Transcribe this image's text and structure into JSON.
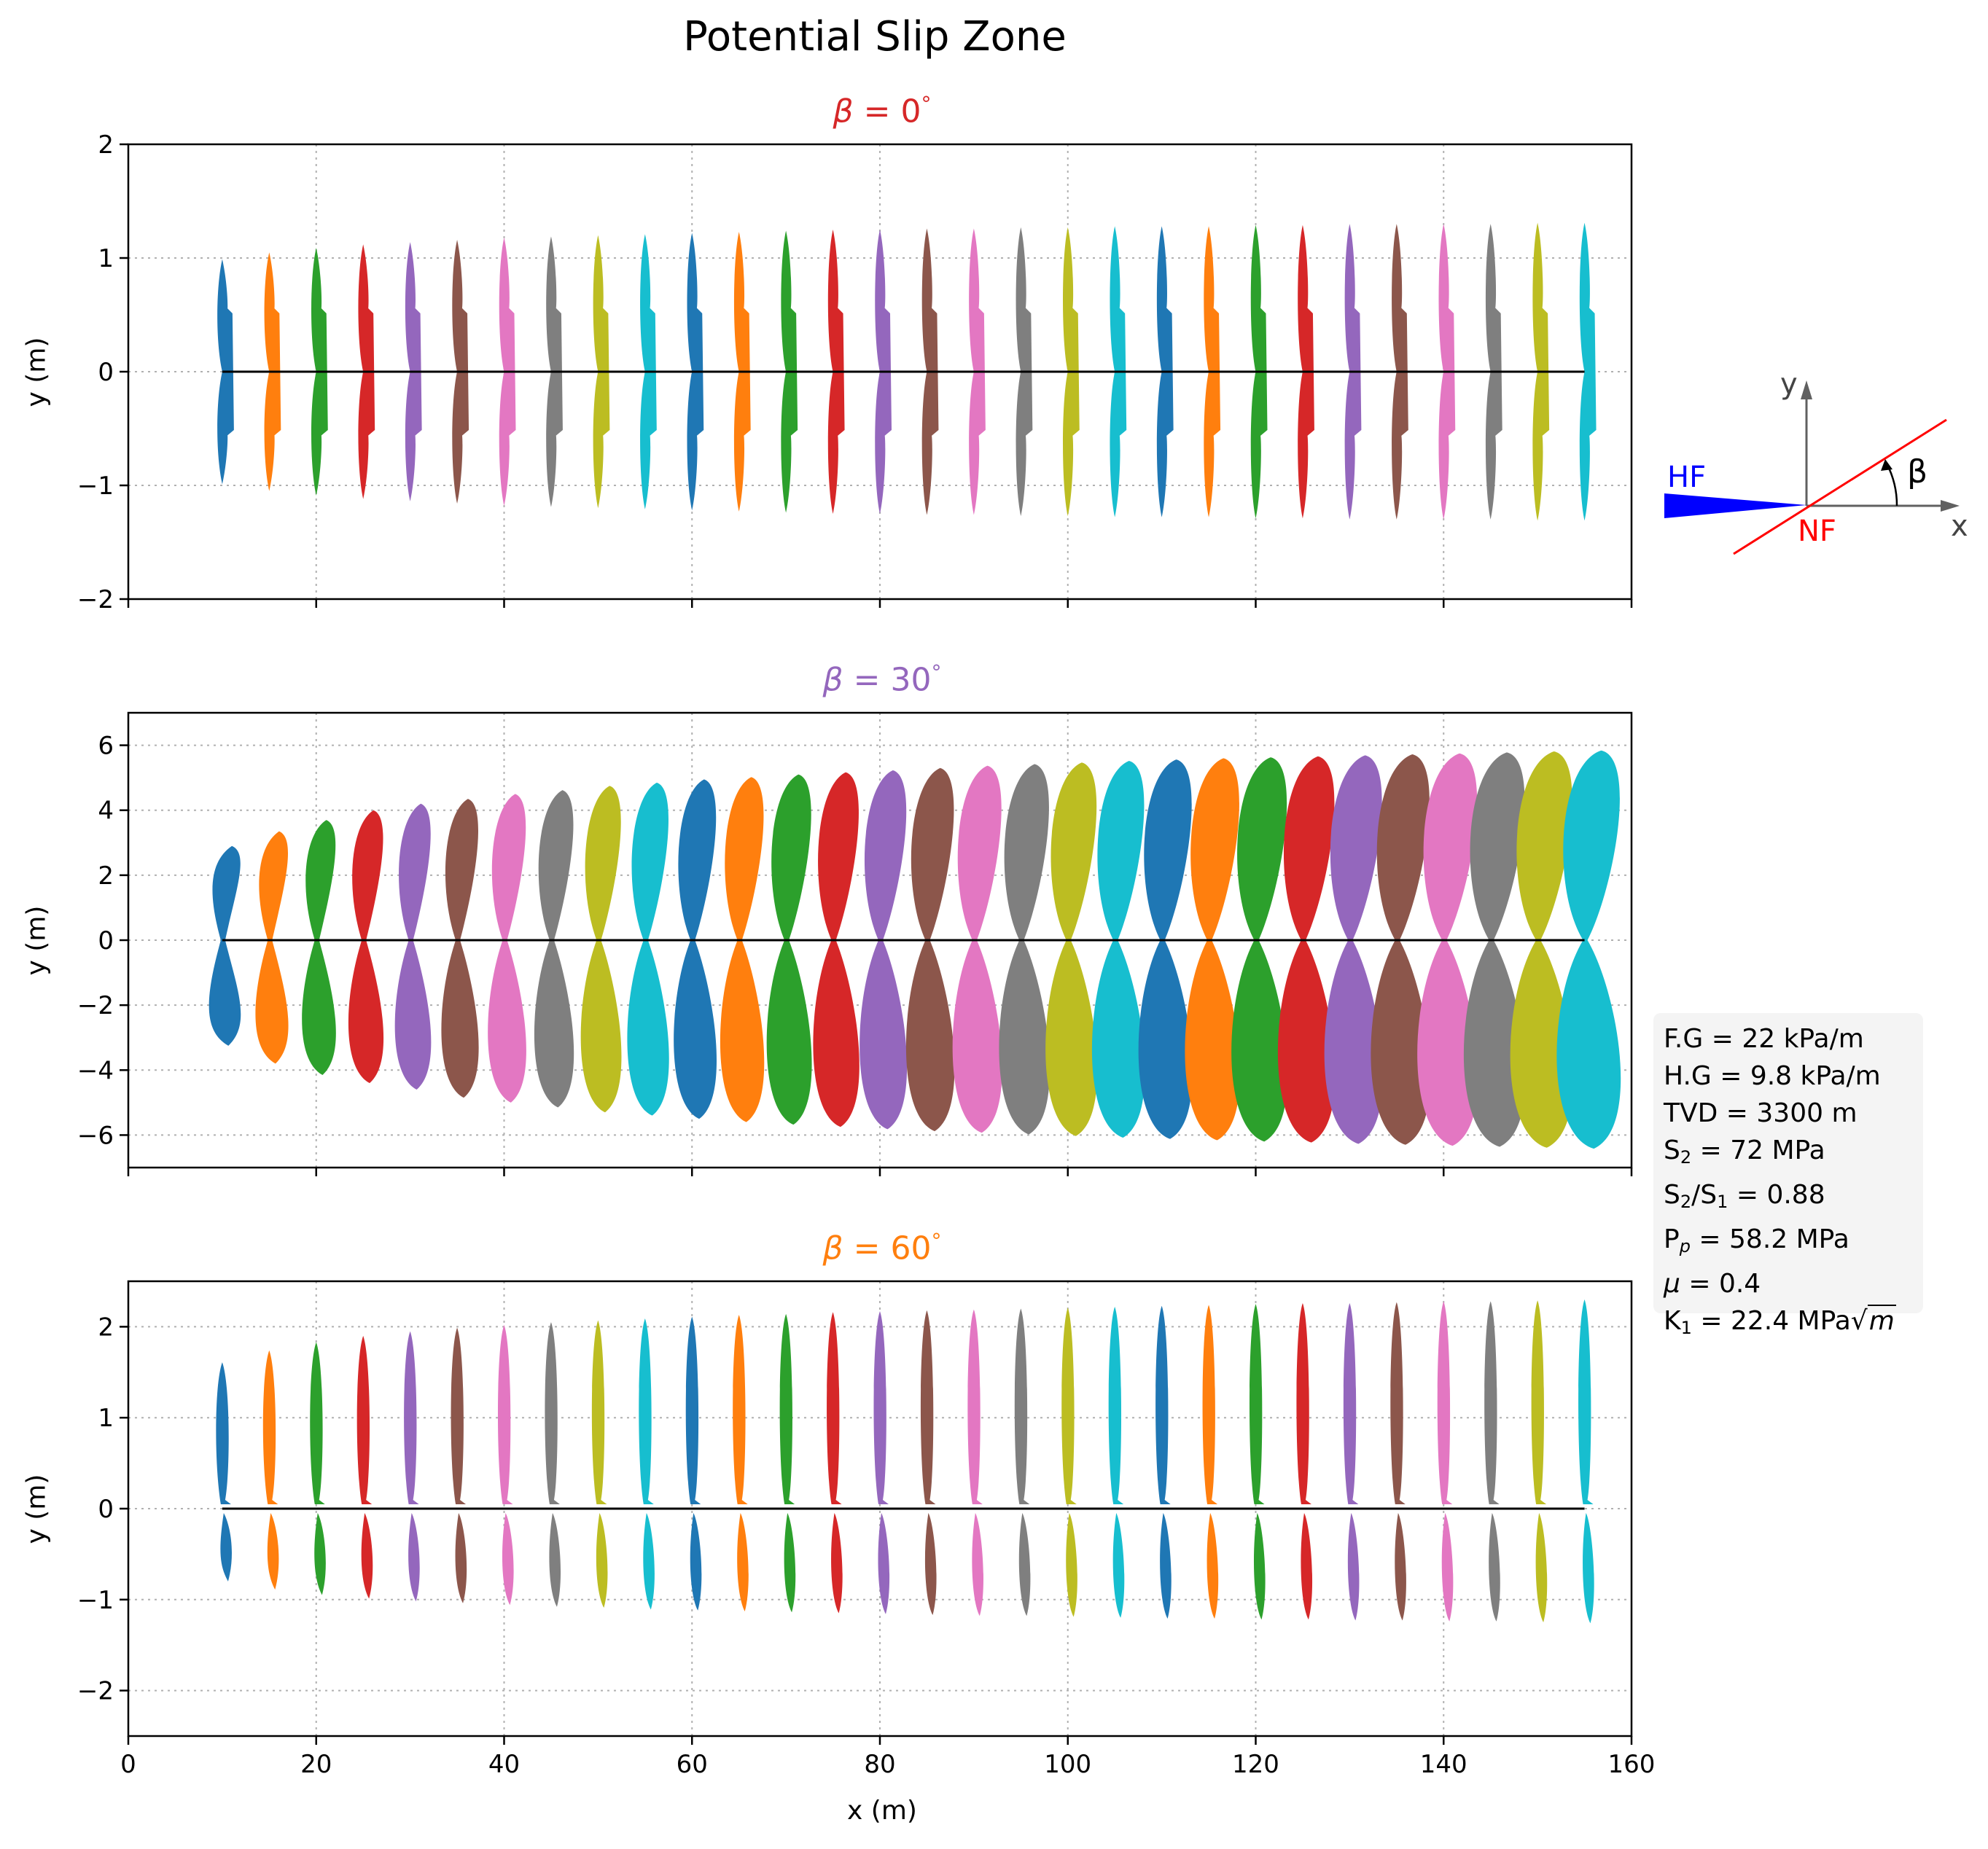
{
  "figure": {
    "title": "Potential Slip Zone",
    "xlabel": "x (m)",
    "ylabel": "y (m)"
  },
  "colors": [
    "#1f77b4",
    "#ff7f0e",
    "#2ca02c",
    "#d62728",
    "#9467bd",
    "#8c564b",
    "#e377c2",
    "#7f7f7f",
    "#bcbd22",
    "#17becf"
  ],
  "chart_data": [
    {
      "type": "area",
      "title_symbol": "β",
      "title_value": "= 0",
      "title_unit": "°",
      "title_color": "#d62728",
      "xlim": [
        0,
        160
      ],
      "ylim": [
        -2,
        2
      ],
      "yticks": [
        -2,
        -1,
        0,
        1,
        2
      ],
      "xticks": [
        0,
        20,
        40,
        60,
        80,
        100,
        120,
        140,
        160
      ],
      "grid": true,
      "reference_line": {
        "x": [
          10,
          155
        ],
        "y": 0
      },
      "zone_positions_x": [
        10,
        15,
        20,
        25,
        30,
        35,
        40,
        45,
        50,
        55,
        60,
        65,
        70,
        75,
        80,
        85,
        90,
        95,
        100,
        105,
        110,
        115,
        120,
        125,
        130,
        135,
        140,
        145,
        150,
        155
      ],
      "zone_upper_extent_y": [
        0.99,
        1.05,
        1.09,
        1.12,
        1.14,
        1.16,
        1.18,
        1.19,
        1.2,
        1.21,
        1.22,
        1.23,
        1.24,
        1.25,
        1.25,
        1.26,
        1.26,
        1.27,
        1.27,
        1.28,
        1.28,
        1.28,
        1.29,
        1.29,
        1.3,
        1.3,
        1.3,
        1.3,
        1.31,
        1.31
      ],
      "zone_lower_extent_y": [
        -0.99,
        -1.05,
        -1.09,
        -1.12,
        -1.14,
        -1.16,
        -1.18,
        -1.19,
        -1.2,
        -1.21,
        -1.22,
        -1.23,
        -1.24,
        -1.25,
        -1.25,
        -1.26,
        -1.26,
        -1.27,
        -1.27,
        -1.28,
        -1.28,
        -1.28,
        -1.29,
        -1.29,
        -1.3,
        -1.3,
        -1.3,
        -1.3,
        -1.31,
        -1.31
      ],
      "zone_shape": "symmetric"
    },
    {
      "type": "area",
      "title_symbol": "β",
      "title_value": "= 30",
      "title_unit": "°",
      "title_color": "#9467bd",
      "xlim": [
        0,
        160
      ],
      "ylim": [
        -7,
        7
      ],
      "yticks": [
        -6,
        -4,
        -2,
        0,
        2,
        4,
        6
      ],
      "xticks": [
        0,
        20,
        40,
        60,
        80,
        100,
        120,
        140,
        160
      ],
      "grid": true,
      "reference_line": {
        "x": [
          10,
          155
        ],
        "y": 0
      },
      "zone_positions_x": [
        10,
        15,
        20,
        25,
        30,
        35,
        40,
        45,
        50,
        55,
        60,
        65,
        70,
        75,
        80,
        85,
        90,
        95,
        100,
        105,
        110,
        115,
        120,
        125,
        130,
        135,
        140,
        145,
        150,
        155
      ],
      "zone_upper_extent_y": [
        2.9,
        3.35,
        3.7,
        4.0,
        4.2,
        4.35,
        4.5,
        4.62,
        4.75,
        4.85,
        4.95,
        5.02,
        5.1,
        5.17,
        5.23,
        5.3,
        5.37,
        5.42,
        5.47,
        5.52,
        5.56,
        5.6,
        5.63,
        5.66,
        5.69,
        5.72,
        5.75,
        5.78,
        5.81,
        5.84
      ],
      "zone_lower_extent_y": [
        -3.25,
        -3.8,
        -4.15,
        -4.4,
        -4.6,
        -4.85,
        -5.0,
        -5.15,
        -5.3,
        -5.4,
        -5.5,
        -5.6,
        -5.68,
        -5.75,
        -5.82,
        -5.88,
        -5.93,
        -5.98,
        -6.03,
        -6.08,
        -6.12,
        -6.16,
        -6.2,
        -6.23,
        -6.27,
        -6.3,
        -6.33,
        -6.36,
        -6.39,
        -6.42
      ],
      "zone_shape": "butterfly"
    },
    {
      "type": "area",
      "title_symbol": "β",
      "title_value": "= 60",
      "title_unit": "°",
      "title_color": "#ff7f0e",
      "xlim": [
        0,
        160
      ],
      "ylim": [
        -2.5,
        2.5
      ],
      "yticks": [
        -2,
        -1,
        0,
        1,
        2
      ],
      "xticks": [
        0,
        20,
        40,
        60,
        80,
        100,
        120,
        140,
        160
      ],
      "grid": true,
      "reference_line": {
        "x": [
          10,
          155
        ],
        "y": 0
      },
      "zone_positions_x": [
        10,
        15,
        20,
        25,
        30,
        35,
        40,
        45,
        50,
        55,
        60,
        65,
        70,
        75,
        80,
        85,
        90,
        95,
        100,
        105,
        110,
        115,
        120,
        125,
        130,
        135,
        140,
        145,
        150,
        155
      ],
      "zone_upper_extent_y": [
        1.61,
        1.74,
        1.83,
        1.9,
        1.95,
        1.99,
        2.02,
        2.05,
        2.07,
        2.09,
        2.11,
        2.13,
        2.14,
        2.16,
        2.17,
        2.18,
        2.19,
        2.2,
        2.21,
        2.22,
        2.23,
        2.24,
        2.25,
        2.26,
        2.26,
        2.27,
        2.28,
        2.28,
        2.29,
        2.3
      ],
      "zone_lower_extent_y": [
        -0.8,
        -0.89,
        -0.95,
        -0.99,
        -1.02,
        -1.04,
        -1.06,
        -1.08,
        -1.09,
        -1.11,
        -1.12,
        -1.13,
        -1.14,
        -1.15,
        -1.16,
        -1.17,
        -1.18,
        -1.18,
        -1.19,
        -1.2,
        -1.21,
        -1.21,
        -1.22,
        -1.22,
        -1.23,
        -1.23,
        -1.24,
        -1.24,
        -1.25,
        -1.26
      ],
      "zone_shape": "asymmetric"
    }
  ],
  "schematic": {
    "label_hf": "HF",
    "label_nf": "NF",
    "label_beta": "β",
    "label_x": "x",
    "label_y": "y",
    "hf_color": "#0000ff",
    "nf_color": "#ff0000"
  },
  "parameters": {
    "fg": "F.G = 22 kPa/m",
    "hg": "H.G = 9.8 kPa/m",
    "tvd": "TVD = 3300 m",
    "s2_pre": "S",
    "s2_sub": "2",
    "s2_post": " = 72 MPa",
    "ratio_a": "S",
    "ratio_a_sub": "2",
    "ratio_mid": "/S",
    "ratio_b_sub": "1",
    "ratio_post": " = 0.88",
    "pp_pre": "P",
    "pp_sub": "p",
    "pp_post": " = 58.2 MPa",
    "mu_sym": "μ",
    "mu_post": " = 0.4",
    "k1_pre": "K",
    "k1_sub": "1",
    "k1_post": " = 22.4 MPa",
    "k1_rad": "m"
  }
}
